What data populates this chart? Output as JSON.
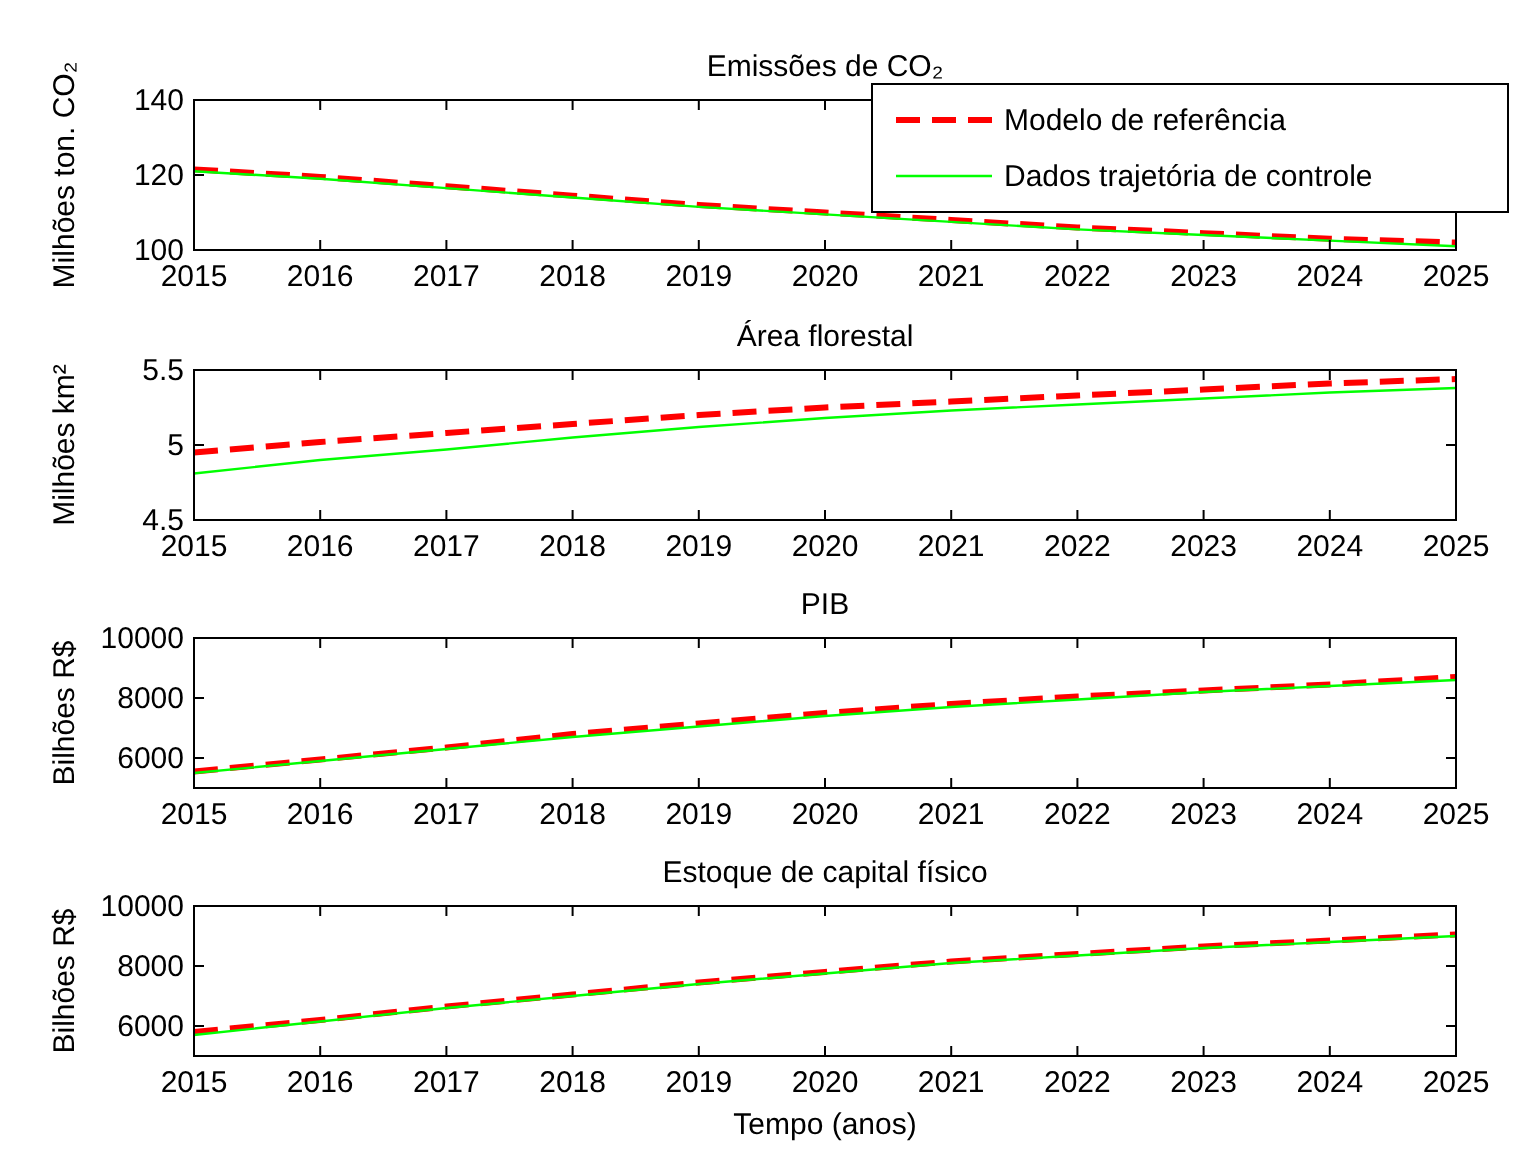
{
  "chart_data": [
    {
      "type": "line",
      "title": "Emissões de CO₂",
      "ylabel": "Milhões ton. CO₂",
      "x": [
        2015,
        2016,
        2017,
        2018,
        2019,
        2020,
        2021,
        2022,
        2023,
        2024,
        2025
      ],
      "xlim": [
        2015,
        2025
      ],
      "xticks": [
        2015,
        2016,
        2017,
        2018,
        2019,
        2020,
        2021,
        2022,
        2023,
        2024,
        2025
      ],
      "ylim": [
        100,
        140
      ],
      "yticks": [
        100,
        120,
        140
      ],
      "legend": "top right",
      "grid": false,
      "series": [
        {
          "name": "Modelo de referência",
          "color": "#ff0000",
          "line_style": "dashed",
          "values": [
            121.5,
            119.5,
            117,
            114.5,
            112,
            110,
            108,
            106,
            104.5,
            103,
            102
          ]
        },
        {
          "name": "Dados trajetória de controle",
          "color": "#00ff00",
          "line_style": "solid",
          "values": [
            121,
            119,
            116.5,
            114,
            111.5,
            109.5,
            107.5,
            105.5,
            104,
            102.5,
            101
          ]
        }
      ]
    },
    {
      "type": "line",
      "title": "Área florestal",
      "ylabel": "Milhões km²",
      "x": [
        2015,
        2016,
        2017,
        2018,
        2019,
        2020,
        2021,
        2022,
        2023,
        2024,
        2025
      ],
      "xlim": [
        2015,
        2025
      ],
      "xticks": [
        2015,
        2016,
        2017,
        2018,
        2019,
        2020,
        2021,
        2022,
        2023,
        2024,
        2025
      ],
      "ylim": [
        4.5,
        5.5
      ],
      "yticks": [
        4.5,
        5,
        5.5
      ],
      "grid": false,
      "series": [
        {
          "color": "#ff0000",
          "line_style": "dashed",
          "values": [
            4.95,
            5.02,
            5.08,
            5.14,
            5.2,
            5.25,
            5.29,
            5.33,
            5.37,
            5.41,
            5.44
          ]
        },
        {
          "color": "#00ff00",
          "line_style": "solid",
          "values": [
            4.81,
            4.9,
            4.97,
            5.05,
            5.12,
            5.18,
            5.23,
            5.27,
            5.31,
            5.35,
            5.38
          ]
        }
      ]
    },
    {
      "type": "line",
      "title": "PIB",
      "ylabel": "Bilhões R$",
      "x": [
        2015,
        2016,
        2017,
        2018,
        2019,
        2020,
        2021,
        2022,
        2023,
        2024,
        2025
      ],
      "xlim": [
        2015,
        2025
      ],
      "xticks": [
        2015,
        2016,
        2017,
        2018,
        2019,
        2020,
        2021,
        2022,
        2023,
        2024,
        2025
      ],
      "ylim": [
        5000,
        10000
      ],
      "yticks": [
        6000,
        8000,
        10000
      ],
      "grid": false,
      "series": [
        {
          "color": "#ff0000",
          "line_style": "dashed",
          "values": [
            5550,
            5950,
            6350,
            6800,
            7150,
            7500,
            7800,
            8050,
            8250,
            8450,
            8700
          ]
        },
        {
          "color": "#00ff00",
          "line_style": "solid",
          "values": [
            5500,
            5900,
            6300,
            6700,
            7050,
            7400,
            7700,
            7950,
            8200,
            8400,
            8600
          ]
        }
      ]
    },
    {
      "type": "line",
      "title": "Estoque de capital físico",
      "ylabel": "Bilhões R$",
      "xlabel": "Tempo (anos)",
      "x": [
        2015,
        2016,
        2017,
        2018,
        2019,
        2020,
        2021,
        2022,
        2023,
        2024,
        2025
      ],
      "xlim": [
        2015,
        2025
      ],
      "xticks": [
        2015,
        2016,
        2017,
        2018,
        2019,
        2020,
        2021,
        2022,
        2023,
        2024,
        2025
      ],
      "ylim": [
        5000,
        10000
      ],
      "yticks": [
        6000,
        8000,
        10000
      ],
      "grid": false,
      "series": [
        {
          "color": "#ff0000",
          "line_style": "dashed",
          "values": [
            5800,
            6200,
            6650,
            7050,
            7450,
            7800,
            8150,
            8400,
            8650,
            8850,
            9050
          ]
        },
        {
          "color": "#00ff00",
          "line_style": "solid",
          "values": [
            5700,
            6150,
            6600,
            7000,
            7400,
            7750,
            8100,
            8350,
            8600,
            8800,
            9000
          ]
        }
      ]
    }
  ]
}
